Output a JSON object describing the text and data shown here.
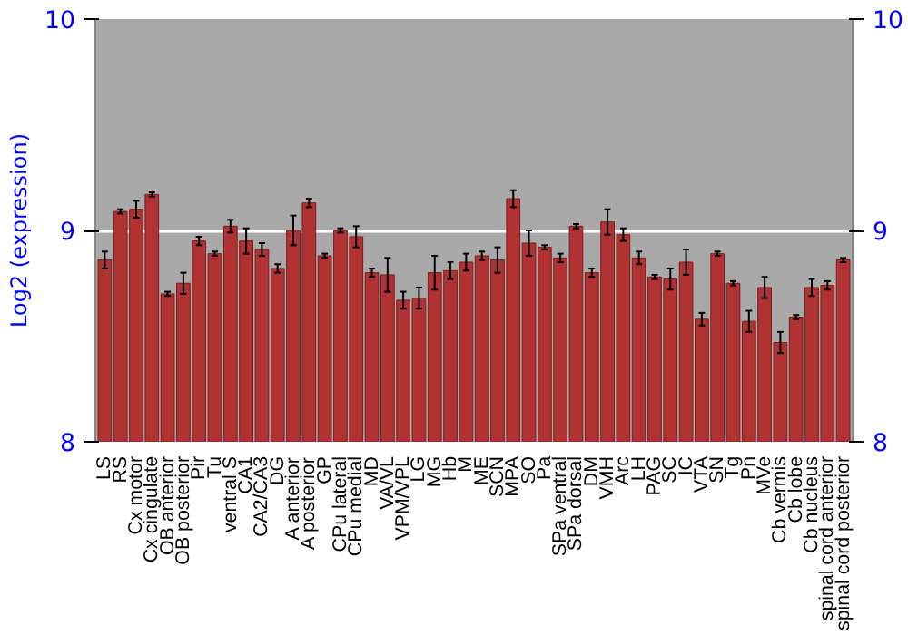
{
  "chart_data": {
    "type": "bar",
    "ylabel": "Log2 (expression)",
    "categories": [
      "LS",
      "RS",
      "Cx motor",
      "Cx cingulate",
      "OB anterior",
      "OB posterior",
      "Pir",
      "Tu",
      "ventral S",
      "CA1",
      "CA2/CA3",
      "DG",
      "A anterior",
      "A posterior",
      "GP",
      "CPu lateral",
      "CPu medial",
      "MD",
      "VA/VL",
      "VPM/VPL",
      "LG",
      "MG",
      "Hb",
      "M",
      "ME",
      "SCN",
      "MPA",
      "SO",
      "Pa",
      "SPa ventral",
      "SPa dorsal",
      "DM",
      "VMH",
      "Arc",
      "LH",
      "PAG",
      "SC",
      "IC",
      "VTA",
      "SN",
      "Tg",
      "Pn",
      "MVe",
      "Cb vermis",
      "Cb lobe",
      "Cb nucleus",
      "spinal cord anterior",
      "spinal cord posterior"
    ],
    "values": [
      8.86,
      9.09,
      9.1,
      9.17,
      8.7,
      8.75,
      8.95,
      8.89,
      9.02,
      8.95,
      8.91,
      8.82,
      9.0,
      9.13,
      8.88,
      9.0,
      8.97,
      8.8,
      8.79,
      8.67,
      8.68,
      8.8,
      8.81,
      8.85,
      8.88,
      8.86,
      9.15,
      8.94,
      8.92,
      8.87,
      9.02,
      8.8,
      9.04,
      8.98,
      8.87,
      8.78,
      8.77,
      8.85,
      8.58,
      8.89,
      8.75,
      8.57,
      8.73,
      8.47,
      8.59,
      8.73,
      8.74,
      8.86
    ],
    "errors": [
      0.04,
      0.01,
      0.04,
      0.01,
      0.01,
      0.05,
      0.02,
      0.01,
      0.03,
      0.06,
      0.03,
      0.02,
      0.07,
      0.02,
      0.01,
      0.01,
      0.05,
      0.02,
      0.08,
      0.04,
      0.05,
      0.08,
      0.04,
      0.04,
      0.02,
      0.06,
      0.04,
      0.06,
      0.01,
      0.02,
      0.01,
      0.02,
      0.06,
      0.03,
      0.03,
      0.01,
      0.05,
      0.06,
      0.03,
      0.01,
      0.01,
      0.05,
      0.05,
      0.05,
      0.01,
      0.04,
      0.02,
      0.01
    ],
    "color": "#b03232",
    "ylim": [
      8,
      10
    ],
    "yticks": [
      8,
      9,
      10
    ],
    "y2lim": [
      8,
      10
    ],
    "y2ticks": [
      8,
      9,
      10
    ],
    "grid": "y"
  }
}
